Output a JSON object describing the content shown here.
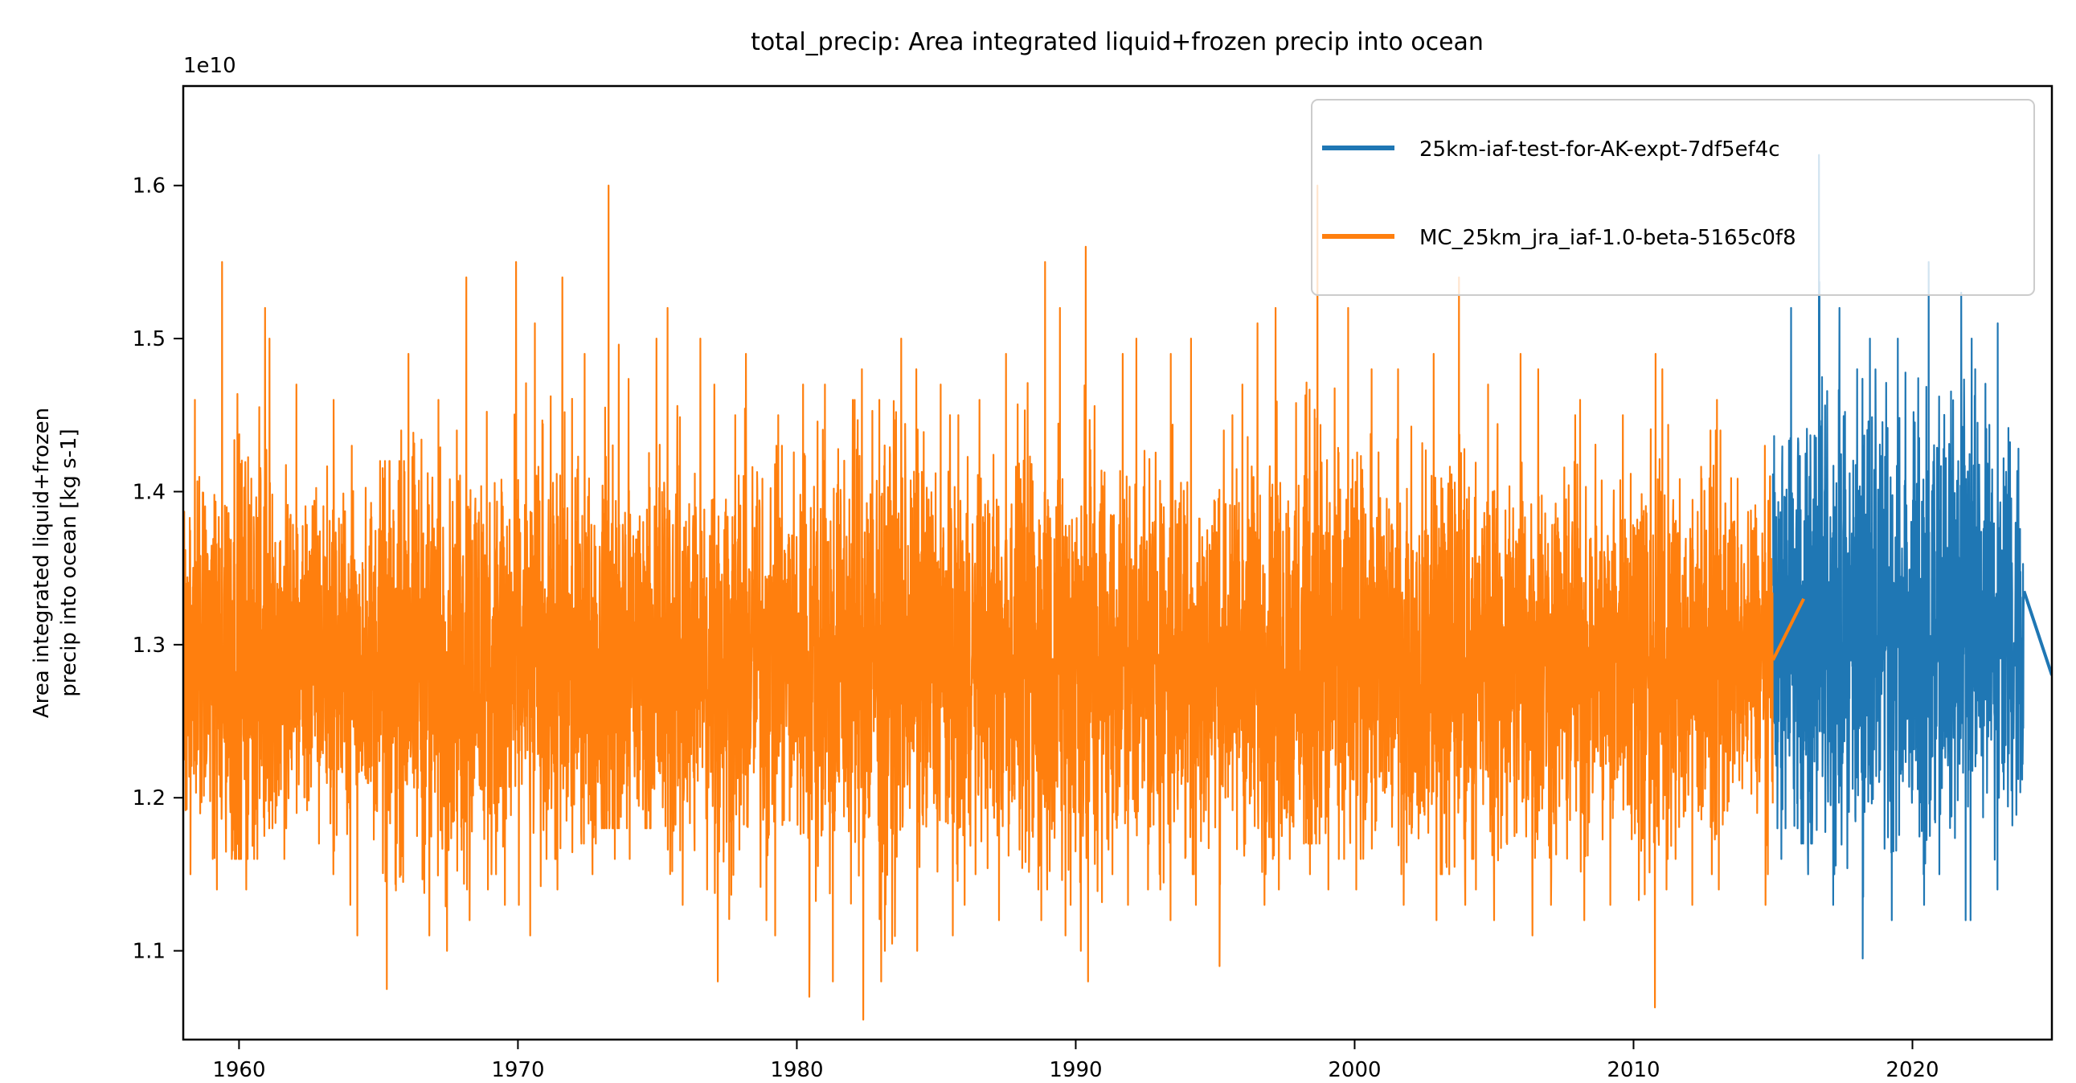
{
  "chart_data": {
    "type": "line",
    "title": "total_precip: Area integrated liquid+frozen precip into ocean",
    "xlabel": "",
    "ylabel": "Area integrated liquid+frozen\nprecip into ocean [kg s-1]",
    "ylabel_lines": [
      "Area integrated liquid+frozen",
      "precip into ocean [kg s-1]"
    ],
    "y_offset_label": "1e10",
    "xlim": [
      1958.0,
      2025.0
    ],
    "ylim": [
      1.042,
      1.665
    ],
    "x_ticks": [
      1960,
      1970,
      1980,
      1990,
      2000,
      2010,
      2020
    ],
    "x_tick_labels": [
      "1960",
      "1970",
      "1980",
      "1990",
      "2000",
      "2010",
      "2020"
    ],
    "y_ticks": [
      1.1,
      1.2,
      1.3,
      1.4,
      1.5,
      1.6
    ],
    "y_tick_labels": [
      "1.1",
      "1.2",
      "1.3",
      "1.4",
      "1.5",
      "1.6"
    ],
    "grid": false,
    "legend_position": "top-right",
    "series": [
      {
        "name": "25km-iaf-test-for-AK-expt-7df5ef4c",
        "color": "#1f77b4",
        "description_of_values": "daily values, summarized per year (1e10 kg s-1)",
        "years": [
          2015,
          2016,
          2017,
          2018,
          2019,
          2020,
          2021,
          2022,
          2023
        ],
        "mean": 1.31,
        "yearly_max": [
          1.52,
          1.62,
          1.52,
          1.5,
          1.5,
          1.55,
          1.53,
          1.5,
          1.51
        ],
        "yearly_min": [
          1.16,
          1.15,
          1.13,
          1.095,
          1.12,
          1.13,
          1.12,
          1.12,
          1.14
        ],
        "tail_segment": [
          [
            2024.0,
            1.335
          ],
          [
            2025.0,
            1.28
          ]
        ]
      },
      {
        "name": "MC_25km_jra_iaf-1.0-beta-5165c0f8",
        "color": "#ff7f0e",
        "years": [
          1958,
          1959,
          1960,
          1961,
          1962,
          1963,
          1964,
          1965,
          1966,
          1967,
          1968,
          1969,
          1970,
          1971,
          1972,
          1973,
          1974,
          1975,
          1976,
          1977,
          1978,
          1979,
          1980,
          1981,
          1982,
          1983,
          1984,
          1985,
          1986,
          1987,
          1988,
          1989,
          1990,
          1991,
          1992,
          1993,
          1994,
          1995,
          1996,
          1997,
          1998,
          1999,
          2000,
          2001,
          2002,
          2003,
          2004,
          2005,
          2006,
          2007,
          2008,
          2009,
          2010,
          2011,
          2012,
          2013,
          2014
        ],
        "mean": 1.29,
        "yearly_max": [
          1.46,
          1.55,
          1.52,
          1.5,
          1.47,
          1.46,
          1.43,
          1.44,
          1.49,
          1.46,
          1.54,
          1.55,
          1.51,
          1.54,
          1.49,
          1.6,
          1.5,
          1.52,
          1.5,
          1.47,
          1.49,
          1.45,
          1.47,
          1.47,
          1.48,
          1.5,
          1.48,
          1.47,
          1.46,
          1.49,
          1.55,
          1.52,
          1.56,
          1.49,
          1.5,
          1.49,
          1.5,
          1.47,
          1.51,
          1.52,
          1.6,
          1.52,
          1.48,
          1.48,
          1.49,
          1.54,
          1.47,
          1.49,
          1.48,
          1.45,
          1.46,
          1.45,
          1.49,
          1.48,
          1.46,
          1.44,
          1.43
        ],
        "yearly_min": [
          1.15,
          1.14,
          1.14,
          1.16,
          1.17,
          1.13,
          1.11,
          1.075,
          1.11,
          1.1,
          1.12,
          1.13,
          1.11,
          1.14,
          1.15,
          1.16,
          1.16,
          1.13,
          1.14,
          1.08,
          1.12,
          1.11,
          1.07,
          1.08,
          1.055,
          1.08,
          1.1,
          1.11,
          1.13,
          1.12,
          1.12,
          1.11,
          1.08,
          1.13,
          1.14,
          1.12,
          1.13,
          1.09,
          1.13,
          1.14,
          1.15,
          1.14,
          1.14,
          1.13,
          1.12,
          1.13,
          1.14,
          1.12,
          1.11,
          1.13,
          1.12,
          1.13,
          1.063,
          1.14,
          1.13,
          1.14,
          1.13
        ],
        "tail_segment": [
          [
            2015.0,
            1.29
          ],
          [
            2016.1,
            1.33
          ]
        ]
      }
    ]
  }
}
